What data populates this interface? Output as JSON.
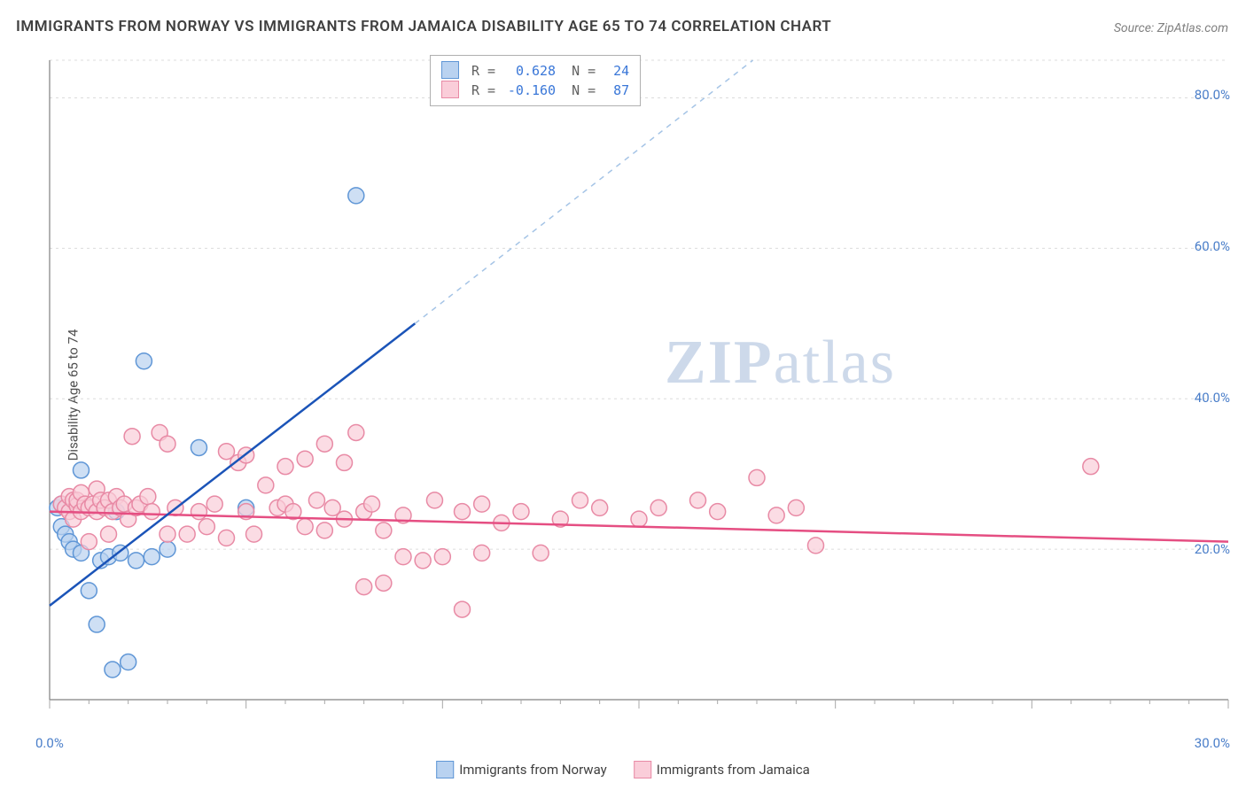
{
  "title": "IMMIGRANTS FROM NORWAY VS IMMIGRANTS FROM JAMAICA DISABILITY AGE 65 TO 74 CORRELATION CHART",
  "source": "Source: ZipAtlas.com",
  "ylabel": "Disability Age 65 to 74",
  "watermark_zip": "ZIP",
  "watermark_atlas": "atlas",
  "chart": {
    "type": "scatter",
    "background_color": "#ffffff",
    "grid_color": "#dcdcdc",
    "axis_color": "#808080",
    "tick_color": "#a8a8a8",
    "xlim": [
      0,
      30
    ],
    "ylim": [
      0,
      85
    ],
    "x_ticks_major": [
      0,
      5,
      10,
      15,
      20,
      25,
      30
    ],
    "x_labels": {
      "0": "0.0%",
      "30": "30.0%"
    },
    "y_ticks": [
      20,
      40,
      60,
      80
    ],
    "y_labels": {
      "20": "20.0%",
      "40": "40.0%",
      "60": "60.0%",
      "80": "80.0%"
    },
    "marker_radius": 9,
    "marker_stroke_width": 1.5,
    "line_width": 2.5,
    "series": [
      {
        "name": "Immigrants from Norway",
        "legend_label": "Immigrants from Norway",
        "color_fill": "#b9d2f0",
        "color_stroke": "#5f96d6",
        "line_color": "#1b54b8",
        "dash_color": "#a5c4e6",
        "r_label": "R =",
        "r_value": "0.628",
        "n_label": "N =",
        "n_value": "24",
        "trend": {
          "x1": 0,
          "y1": 12.5,
          "x2": 9.3,
          "y2": 50
        },
        "trend_dash": {
          "x1": 9.3,
          "y1": 50,
          "x2": 17.9,
          "y2": 85
        },
        "points": [
          [
            0.2,
            25.5
          ],
          [
            0.3,
            23.0
          ],
          [
            0.3,
            26.0
          ],
          [
            0.4,
            22.0
          ],
          [
            0.5,
            21.0
          ],
          [
            0.6,
            20.0
          ],
          [
            0.6,
            25.8
          ],
          [
            0.8,
            19.5
          ],
          [
            0.8,
            30.5
          ],
          [
            1.0,
            14.5
          ],
          [
            1.2,
            10.0
          ],
          [
            1.3,
            18.5
          ],
          [
            1.5,
            19.0
          ],
          [
            1.6,
            4.0
          ],
          [
            1.7,
            25.0
          ],
          [
            1.8,
            19.5
          ],
          [
            2.0,
            5.0
          ],
          [
            2.2,
            18.5
          ],
          [
            2.4,
            45.0
          ],
          [
            2.6,
            19.0
          ],
          [
            3.0,
            20.0
          ],
          [
            3.8,
            33.5
          ],
          [
            5.0,
            25.5
          ],
          [
            7.8,
            67.0
          ]
        ]
      },
      {
        "name": "Immigrants from Jamaica",
        "legend_label": "Immigrants from Jamaica",
        "color_fill": "#facdd9",
        "color_stroke": "#e88aa5",
        "line_color": "#e54e82",
        "r_label": "R =",
        "r_value": "-0.160",
        "n_label": "N =",
        "n_value": "87",
        "trend": {
          "x1": 0,
          "y1": 25.0,
          "x2": 30,
          "y2": 21.0
        },
        "points": [
          [
            0.3,
            26.0
          ],
          [
            0.4,
            25.5
          ],
          [
            0.5,
            25.0
          ],
          [
            0.5,
            27.0
          ],
          [
            0.6,
            26.5
          ],
          [
            0.6,
            24.0
          ],
          [
            0.7,
            25.8
          ],
          [
            0.7,
            26.5
          ],
          [
            0.8,
            25.0
          ],
          [
            0.8,
            27.5
          ],
          [
            0.9,
            26.0
          ],
          [
            1.0,
            25.5
          ],
          [
            1.0,
            21.0
          ],
          [
            1.1,
            26.0
          ],
          [
            1.2,
            28.0
          ],
          [
            1.2,
            25.0
          ],
          [
            1.3,
            26.5
          ],
          [
            1.4,
            25.5
          ],
          [
            1.5,
            22.0
          ],
          [
            1.5,
            26.5
          ],
          [
            1.6,
            25.0
          ],
          [
            1.7,
            27.0
          ],
          [
            1.8,
            25.5
          ],
          [
            1.9,
            26.0
          ],
          [
            2.0,
            24.0
          ],
          [
            2.1,
            35.0
          ],
          [
            2.2,
            25.5
          ],
          [
            2.3,
            26.0
          ],
          [
            2.5,
            27.0
          ],
          [
            2.6,
            25.0
          ],
          [
            2.8,
            35.5
          ],
          [
            3.0,
            22.0
          ],
          [
            3.0,
            34.0
          ],
          [
            3.2,
            25.5
          ],
          [
            3.5,
            22.0
          ],
          [
            3.8,
            25.0
          ],
          [
            4.0,
            23.0
          ],
          [
            4.2,
            26.0
          ],
          [
            4.5,
            21.5
          ],
          [
            4.5,
            33.0
          ],
          [
            4.8,
            31.5
          ],
          [
            5.0,
            25.0
          ],
          [
            5.0,
            32.5
          ],
          [
            5.2,
            22.0
          ],
          [
            5.5,
            28.5
          ],
          [
            5.8,
            25.5
          ],
          [
            6.0,
            26.0
          ],
          [
            6.0,
            31.0
          ],
          [
            6.2,
            25.0
          ],
          [
            6.5,
            32.0
          ],
          [
            6.5,
            23.0
          ],
          [
            6.8,
            26.5
          ],
          [
            7.0,
            22.5
          ],
          [
            7.0,
            34.0
          ],
          [
            7.2,
            25.5
          ],
          [
            7.5,
            24.0
          ],
          [
            7.5,
            31.5
          ],
          [
            7.8,
            35.5
          ],
          [
            8.0,
            25.0
          ],
          [
            8.0,
            15.0
          ],
          [
            8.2,
            26.0
          ],
          [
            8.5,
            22.5
          ],
          [
            8.5,
            15.5
          ],
          [
            9.0,
            19.0
          ],
          [
            9.0,
            24.5
          ],
          [
            9.5,
            18.5
          ],
          [
            9.8,
            26.5
          ],
          [
            10.0,
            19.0
          ],
          [
            10.5,
            12.0
          ],
          [
            10.5,
            25.0
          ],
          [
            11.0,
            26.0
          ],
          [
            11.0,
            19.5
          ],
          [
            11.5,
            23.5
          ],
          [
            12.0,
            25.0
          ],
          [
            12.5,
            19.5
          ],
          [
            13.0,
            24.0
          ],
          [
            13.5,
            26.5
          ],
          [
            14.0,
            25.5
          ],
          [
            15.0,
            24.0
          ],
          [
            15.5,
            25.5
          ],
          [
            16.5,
            26.5
          ],
          [
            17.0,
            25.0
          ],
          [
            18.0,
            29.5
          ],
          [
            18.5,
            24.5
          ],
          [
            19.0,
            25.5
          ],
          [
            19.5,
            20.5
          ],
          [
            26.5,
            31.0
          ]
        ]
      }
    ]
  },
  "bottom_legend": [
    {
      "label": "Immigrants from Norway",
      "fill": "#b9d2f0",
      "stroke": "#5f96d6"
    },
    {
      "label": "Immigrants from Jamaica",
      "fill": "#facdd9",
      "stroke": "#e88aa5"
    }
  ]
}
